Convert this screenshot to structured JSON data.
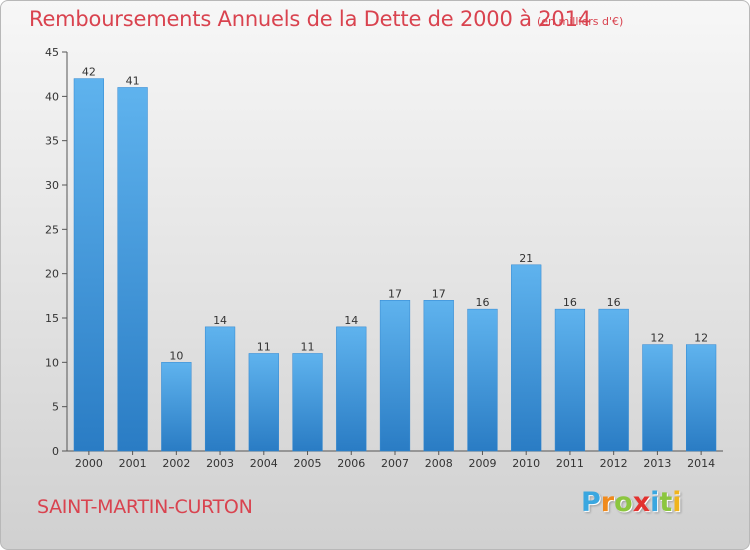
{
  "chart_data": {
    "type": "bar",
    "title": "Remboursements Annuels de la Dette de 2000 à 2014",
    "unit_note": "(en milliers d'€)",
    "categories": [
      "2000",
      "2001",
      "2002",
      "2003",
      "2004",
      "2005",
      "2006",
      "2007",
      "2008",
      "2009",
      "2010",
      "2011",
      "2012",
      "2013",
      "2014"
    ],
    "values": [
      42,
      41,
      10,
      14,
      11,
      11,
      14,
      17,
      17,
      16,
      21,
      16,
      16,
      12,
      12
    ],
    "ylim": [
      0,
      45
    ],
    "yticks": [
      0,
      5,
      10,
      15,
      20,
      25,
      30,
      35,
      40,
      45
    ],
    "grid": false,
    "bar_color": "#4a9fe0"
  },
  "footer": {
    "commune": "SAINT-MARTIN-CURTON",
    "logo_letters": [
      "P",
      "r",
      "o",
      "x",
      "i",
      "t",
      "i"
    ],
    "logo_colors": [
      "#3aa7e0",
      "#f08a1c",
      "#8cc63f",
      "#e2322f",
      "#3aa7e0",
      "#8cc63f",
      "#f0b41c"
    ]
  }
}
